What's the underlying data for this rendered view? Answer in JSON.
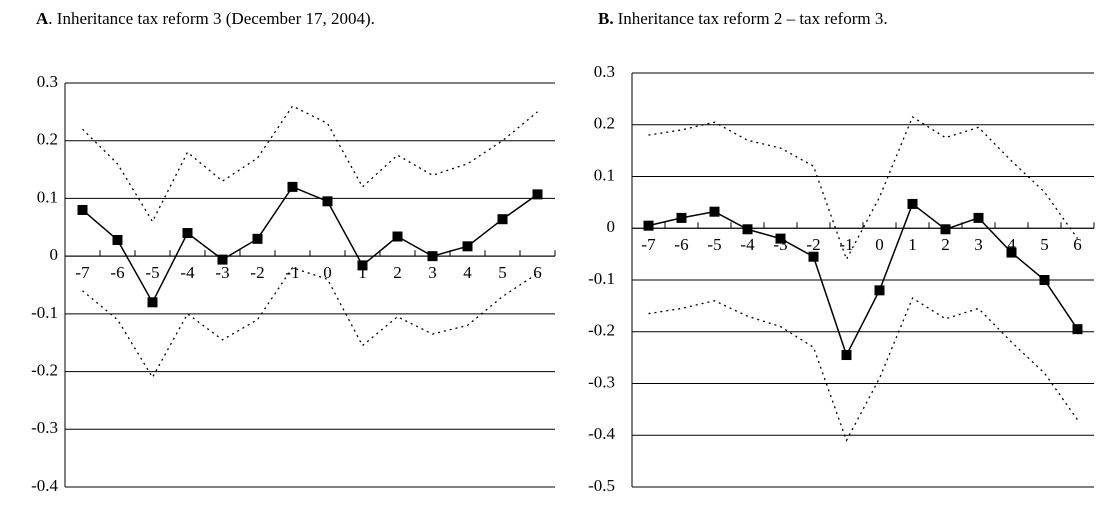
{
  "chart_data": [
    {
      "type": "line",
      "panel": "A",
      "title": ". Inheritance tax reform 3 (December 17, 2004).",
      "categories": [
        "-7",
        "-6",
        "-5",
        "-4",
        "-3",
        "-2",
        "-1",
        "0",
        "1",
        "2",
        "3",
        "4",
        "5",
        "6"
      ],
      "ylim": [
        -0.4,
        0.3
      ],
      "yticks": [
        -0.4,
        -0.3,
        -0.2,
        -0.1,
        0,
        0.1,
        0.2,
        0.3
      ],
      "grid": true,
      "series": [
        {
          "color": "#000000",
          "style": "dotted",
          "values": [
            0.22,
            0.16,
            0.06,
            0.18,
            0.13,
            0.17,
            0.26,
            0.23,
            0.12,
            0.175,
            0.14,
            0.16,
            0.2,
            0.25
          ]
        },
        {
          "color": "#000000",
          "style": "solid",
          "marker": "square",
          "values": [
            0.08,
            0.028,
            -0.08,
            0.04,
            -0.006,
            0.03,
            0.12,
            0.095,
            -0.016,
            0.034,
            0.0,
            0.017,
            0.064,
            0.107
          ]
        },
        {
          "color": "#000000",
          "style": "dotted",
          "values": [
            -0.06,
            -0.11,
            -0.21,
            -0.1,
            -0.145,
            -0.11,
            -0.02,
            -0.04,
            -0.155,
            -0.105,
            -0.135,
            -0.12,
            -0.07,
            -0.03
          ]
        }
      ]
    },
    {
      "type": "line",
      "panel": "B.",
      "title": "Inheritance tax reform 2 – tax reform 3.",
      "categories": [
        "-7",
        "-6",
        "-5",
        "-4",
        "-3",
        "-2",
        "-1",
        "0",
        "1",
        "2",
        "3",
        "4",
        "5",
        "6"
      ],
      "ylim": [
        -0.5,
        0.3
      ],
      "yticks": [
        -0.5,
        -0.4,
        -0.3,
        -0.2,
        -0.1,
        0,
        0.1,
        0.2,
        0.3
      ],
      "grid": true,
      "series": [
        {
          "color": "#000000",
          "style": "dotted",
          "values": [
            0.18,
            0.19,
            0.205,
            0.17,
            0.155,
            0.12,
            -0.06,
            0.06,
            0.215,
            0.175,
            0.195,
            0.13,
            0.07,
            -0.02
          ]
        },
        {
          "color": "#000000",
          "style": "solid",
          "marker": "square",
          "values": [
            0.005,
            0.02,
            0.032,
            -0.002,
            -0.02,
            -0.055,
            -0.245,
            -0.12,
            0.047,
            -0.002,
            0.02,
            -0.047,
            -0.1,
            -0.195
          ]
        },
        {
          "color": "#000000",
          "style": "dotted",
          "values": [
            -0.165,
            -0.155,
            -0.14,
            -0.17,
            -0.19,
            -0.23,
            -0.41,
            -0.29,
            -0.135,
            -0.175,
            -0.155,
            -0.22,
            -0.28,
            -0.37
          ]
        }
      ]
    }
  ]
}
